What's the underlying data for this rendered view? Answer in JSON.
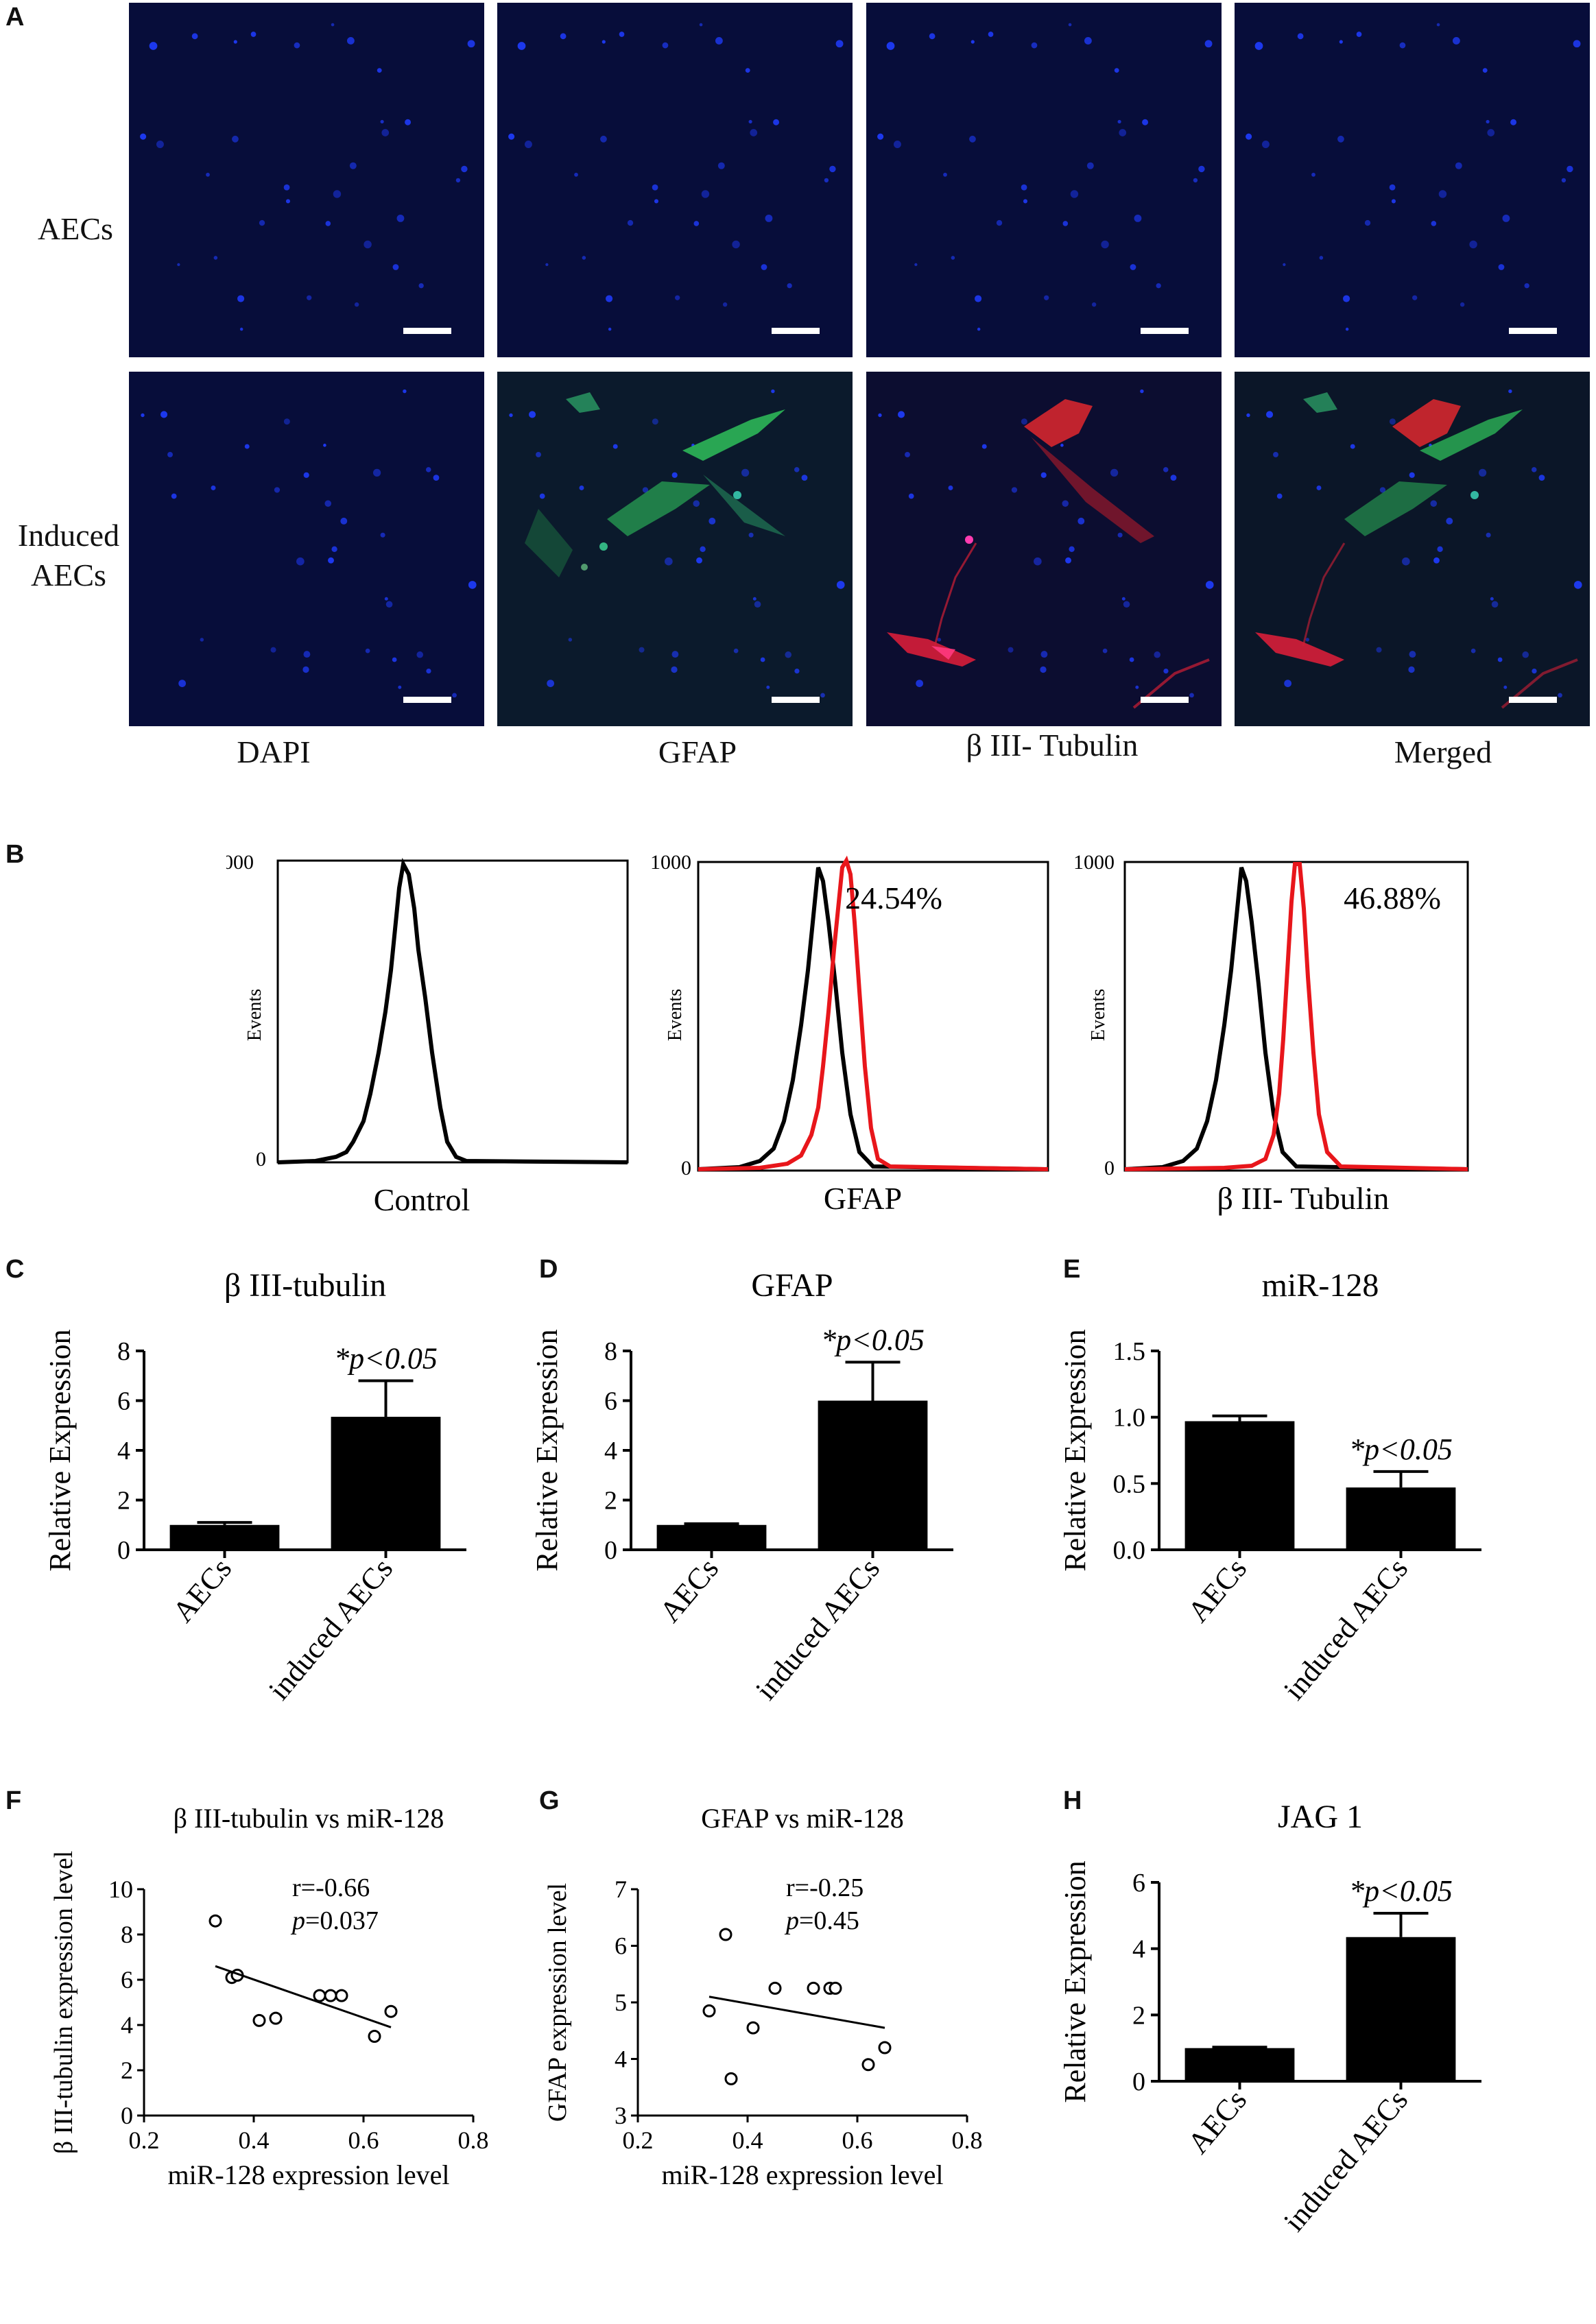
{
  "panel_letters": {
    "A": "A",
    "B": "B",
    "C": "C",
    "D": "D",
    "E": "E",
    "F": "F",
    "G": "G",
    "H": "H"
  },
  "panel_a": {
    "row_labels": [
      "AECs",
      "Induced\nAECs"
    ],
    "column_labels": [
      "DAPI",
      "GFAP",
      "β III- Tubulin",
      "Merged"
    ]
  },
  "panel_b": {
    "ylabel": "Events",
    "y_top": "1000",
    "y_bottom": "0",
    "plots": [
      {
        "xlabel": "Control",
        "percent": ""
      },
      {
        "xlabel": "GFAP",
        "percent": "24.54%"
      },
      {
        "xlabel": "β III- Tubulin",
        "percent": "46.88%"
      }
    ]
  },
  "colors": {
    "control_line": "#000000",
    "stained_line": "#e8161b",
    "bar": "#000000"
  },
  "chart_data": [
    {
      "id": "C",
      "type": "bar",
      "title": "β III-tubulin",
      "ylabel": "Relative Expression",
      "categories": [
        "AECs",
        "induced AECs"
      ],
      "values": [
        1.0,
        5.35
      ],
      "errors": [
        0.1,
        1.45
      ],
      "ylim": [
        0,
        8
      ],
      "yticks": [
        "0",
        "2",
        "4",
        "6",
        "8"
      ],
      "annotation": "*p<0.05"
    },
    {
      "id": "D",
      "type": "bar",
      "title": "GFAP",
      "ylabel": "Relative Expression",
      "categories": [
        "AECs",
        "induced AECs"
      ],
      "values": [
        1.0,
        6.0
      ],
      "errors": [
        0.05,
        1.55
      ],
      "ylim": [
        0,
        8
      ],
      "yticks": [
        "0",
        "2",
        "4",
        "6",
        "8"
      ],
      "annotation": "*p<0.05"
    },
    {
      "id": "E",
      "type": "bar",
      "title": "miR-128",
      "ylabel": "Relative Expression",
      "categories": [
        "AECs",
        "induced AECs"
      ],
      "values": [
        0.97,
        0.47
      ],
      "errors": [
        0.04,
        0.12
      ],
      "ylim": [
        0,
        1.5
      ],
      "yticks": [
        "0.0",
        "0.5",
        "1.0",
        "1.5"
      ],
      "annotation": "*p<0.05"
    },
    {
      "id": "F",
      "type": "scatter",
      "title": "β III-tubulin vs miR-128",
      "xlabel": "miR-128 expression level",
      "ylabel": "β III-tubulin expression level",
      "xlim": [
        0.2,
        0.8
      ],
      "ylim": [
        0,
        10
      ],
      "xticks": [
        "0.2",
        "0.4",
        "0.6",
        "0.8"
      ],
      "yticks": [
        "0",
        "2",
        "4",
        "6",
        "8",
        "10"
      ],
      "points": [
        [
          0.33,
          8.6
        ],
        [
          0.36,
          6.1
        ],
        [
          0.37,
          6.2
        ],
        [
          0.41,
          4.2
        ],
        [
          0.44,
          4.3
        ],
        [
          0.52,
          5.3
        ],
        [
          0.54,
          5.3
        ],
        [
          0.56,
          5.3
        ],
        [
          0.62,
          3.5
        ],
        [
          0.65,
          4.6
        ]
      ],
      "fit": [
        [
          0.33,
          6.6
        ],
        [
          0.65,
          3.9
        ]
      ],
      "stat_r": "r=-0.66",
      "stat_p_label": "p",
      "stat_p_value": "=0.037"
    },
    {
      "id": "G",
      "type": "scatter",
      "title": "GFAP vs miR-128",
      "xlabel": "miR-128 expression level",
      "ylabel": "GFAP expression level",
      "xlim": [
        0.2,
        0.8
      ],
      "ylim": [
        3,
        7
      ],
      "xticks": [
        "0.2",
        "0.4",
        "0.6",
        "0.8"
      ],
      "yticks": [
        "3",
        "4",
        "5",
        "6",
        "7"
      ],
      "points": [
        [
          0.33,
          4.85
        ],
        [
          0.36,
          6.2
        ],
        [
          0.37,
          3.65
        ],
        [
          0.41,
          4.55
        ],
        [
          0.45,
          5.25
        ],
        [
          0.52,
          5.25
        ],
        [
          0.55,
          5.25
        ],
        [
          0.56,
          5.25
        ],
        [
          0.62,
          3.9
        ],
        [
          0.65,
          4.2
        ]
      ],
      "fit": [
        [
          0.33,
          5.1
        ],
        [
          0.65,
          4.55
        ]
      ],
      "stat_r": "r=-0.25",
      "stat_p_label": "p",
      "stat_p_value": "=0.45"
    },
    {
      "id": "H",
      "type": "bar",
      "title": "JAG 1",
      "ylabel": "Relative Expression",
      "categories": [
        "AECs",
        "induced AECs"
      ],
      "values": [
        1.0,
        4.35
      ],
      "errors": [
        0.03,
        0.72
      ],
      "ylim": [
        0,
        6
      ],
      "yticks": [
        "0",
        "2",
        "4",
        "6"
      ],
      "annotation": "*p<0.05"
    }
  ]
}
